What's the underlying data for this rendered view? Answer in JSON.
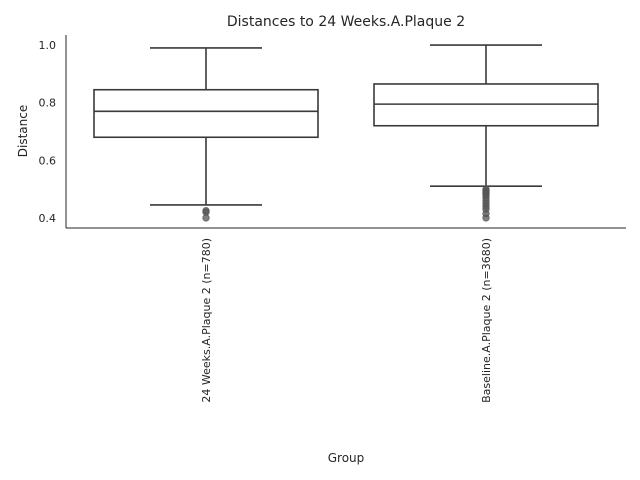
{
  "chart_data": {
    "type": "box",
    "title": "Distances to 24 Weeks.A.Plaque 2",
    "xlabel": "Group",
    "ylabel": "Distance",
    "ylim": [
      0.365,
      1.035
    ],
    "yticks": [
      0.4,
      0.6,
      0.8,
      1.0
    ],
    "ytick_labels": [
      "0.4",
      "0.6",
      "0.8",
      "1.0"
    ],
    "grid": false,
    "categories": [
      "24 Weeks.A.Plaque 2 (n=780)",
      "Baseline.A.Plaque 2 (n=3680)"
    ],
    "boxes": [
      {
        "whisker_low": 0.445,
        "q1": 0.68,
        "median": 0.77,
        "q3": 0.845,
        "whisker_high": 0.99,
        "outliers": [
          0.42,
          0.425,
          0.4
        ]
      },
      {
        "whisker_low": 0.51,
        "q1": 0.72,
        "median": 0.795,
        "q3": 0.865,
        "whisker_high": 1.0,
        "outliers": [
          0.5,
          0.495,
          0.49,
          0.485,
          0.48,
          0.47,
          0.46,
          0.45,
          0.44,
          0.43,
          0.415,
          0.4
        ]
      }
    ]
  }
}
